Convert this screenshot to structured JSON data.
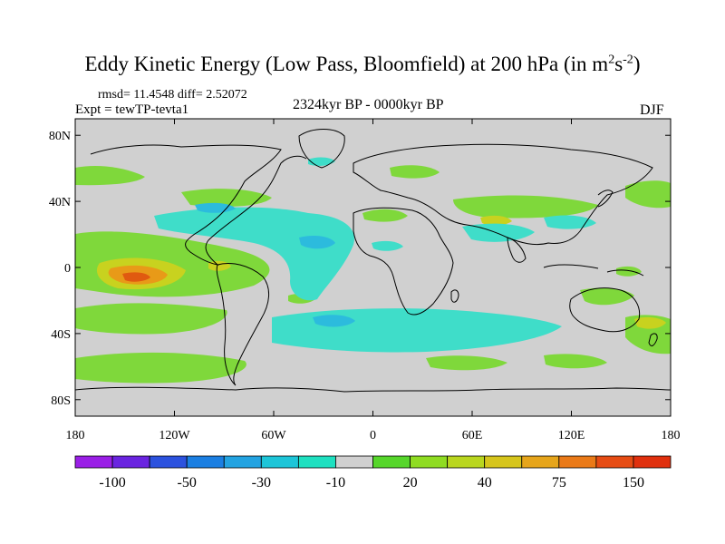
{
  "title": {
    "main": "Eddy Kinetic Energy (Low Pass, Bloomfield) at 200 hPa (in m",
    "sup1": "2",
    "mid": "s",
    "sup2": "-2",
    "close": ")"
  },
  "stats": {
    "text": "rmsd= 11.4548 diff= 2.52072"
  },
  "experiment": {
    "text": "Expt = tewTP-tevta1"
  },
  "period": {
    "text": "2324kyr BP - 0000kyr BP"
  },
  "season": {
    "text": "DJF"
  },
  "axes": {
    "y_ticks": [
      {
        "label": "80N",
        "value": 80
      },
      {
        "label": "40N",
        "value": 40
      },
      {
        "label": "0",
        "value": 0
      },
      {
        "label": "40S",
        "value": -40
      },
      {
        "label": "80S",
        "value": -80
      }
    ],
    "x_ticks": [
      {
        "label": "180",
        "value": -180
      },
      {
        "label": "120W",
        "value": -120
      },
      {
        "label": "60W",
        "value": -60
      },
      {
        "label": "0",
        "value": 0
      },
      {
        "label": "60E",
        "value": 60
      },
      {
        "label": "120E",
        "value": 120
      },
      {
        "label": "180",
        "value": 180
      }
    ]
  },
  "colorbar": {
    "colors": [
      "#9a1fe6",
      "#6a24e0",
      "#2c52de",
      "#1b7fe2",
      "#23a3e1",
      "#1dc5d8",
      "#1ee0c0",
      "#d0d0d0",
      "#56d62b",
      "#8fdc22",
      "#b9d61f",
      "#d6c51c",
      "#e6a51b",
      "#ea7a18",
      "#e64c14",
      "#e0300e"
    ],
    "labels": [
      "-100",
      "-50",
      "-30",
      "-10",
      "20",
      "40",
      "75",
      "150"
    ]
  },
  "colors": {
    "background": "#d0d0d0",
    "level_green": "#7fd83b",
    "level_cyan": "#3fddc9",
    "level_blue": "#2cbbdd",
    "level_yellow": "#c8d21f",
    "level_orange": "#e89a18",
    "level_red": "#e05a10"
  }
}
